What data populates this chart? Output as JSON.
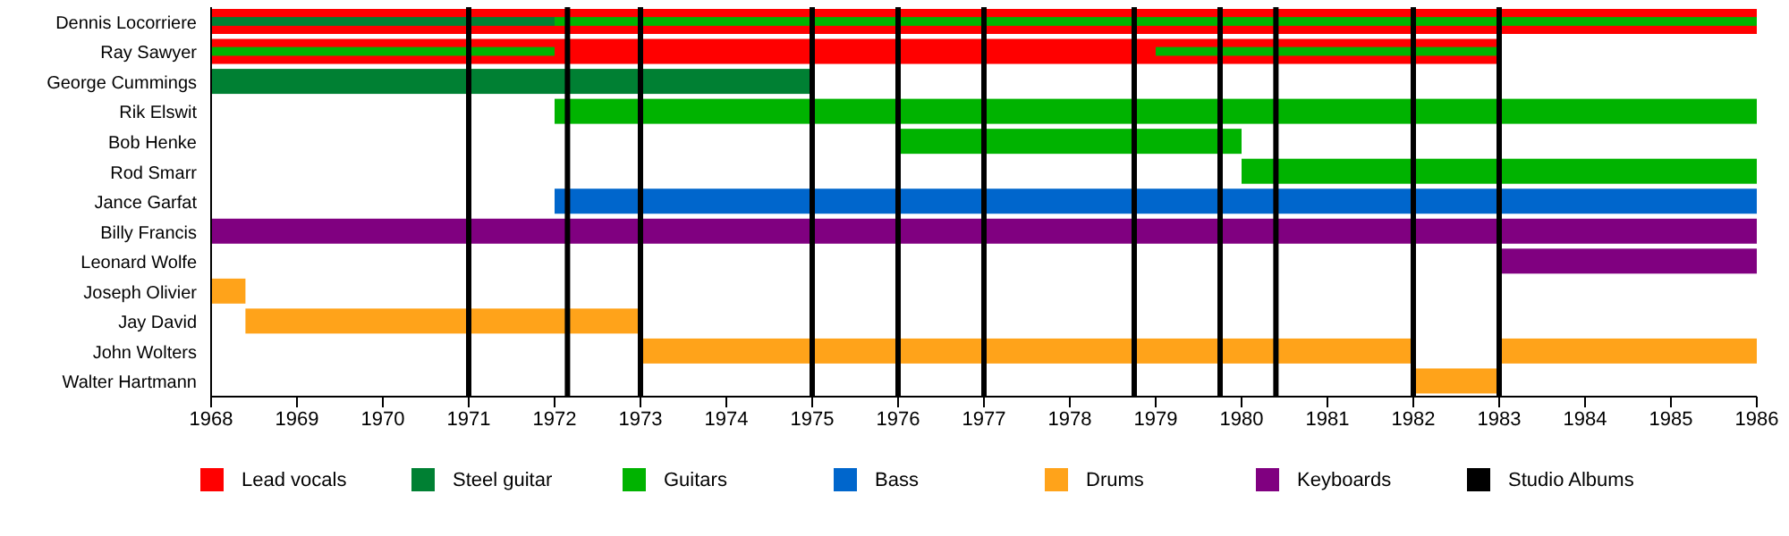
{
  "chart_data": {
    "type": "bar",
    "orientation": "horizontal",
    "categories": [
      "Dennis Locorriere",
      "Ray Sawyer",
      "George Cummings",
      "Rik Elswit",
      "Bob Henke",
      "Rod Smarr",
      "Jance Garfat",
      "Billy Francis",
      "Leonard Wolfe",
      "Joseph Olivier",
      "Jay David",
      "John Wolters",
      "Walter Hartmann"
    ],
    "series": [
      {
        "name": "Lead vocals",
        "color": "#ff0000",
        "base": [
          1968,
          1968,
          null,
          null,
          null,
          null,
          null,
          null,
          null,
          null,
          null,
          null,
          null
        ],
        "values": [
          18,
          15,
          null,
          null,
          null,
          null,
          null,
          null,
          null,
          null,
          null,
          null,
          null
        ]
      },
      {
        "name": "Steel guitar",
        "color": "#008033",
        "base": [
          1968,
          null,
          1968,
          null,
          null,
          null,
          null,
          null,
          null,
          null,
          null,
          null,
          null
        ],
        "values": [
          4,
          null,
          7,
          null,
          null,
          null,
          null,
          null,
          null,
          null,
          null,
          null,
          null
        ]
      },
      {
        "name": "Guitars",
        "color": "#00b300",
        "base": [
          1972,
          1968,
          null,
          1972,
          1976,
          1980,
          null,
          null,
          null,
          null,
          null,
          null,
          null
        ],
        "values": [
          14,
          4,
          null,
          14,
          4,
          6,
          null,
          null,
          null,
          null,
          null,
          null,
          null
        ]
      },
      {
        "color": "#00b300",
        "base": [
          null,
          1979,
          null,
          null,
          null,
          null,
          null,
          null,
          null,
          null,
          null,
          null,
          null
        ],
        "values": [
          null,
          4,
          null,
          null,
          null,
          null,
          null,
          null,
          null,
          null,
          null,
          null,
          null
        ]
      },
      {
        "name": "Bass",
        "color": "#0066cc",
        "base": [
          null,
          null,
          null,
          null,
          null,
          null,
          1972,
          null,
          null,
          null,
          null,
          null,
          null
        ],
        "values": [
          null,
          null,
          null,
          null,
          null,
          null,
          14,
          null,
          null,
          null,
          null,
          null,
          null
        ]
      },
      {
        "name": "Drums",
        "color": "#ffa31a",
        "base": [
          null,
          null,
          null,
          null,
          null,
          null,
          null,
          null,
          null,
          1968,
          1968.4,
          1973,
          1982
        ],
        "values": [
          null,
          null,
          null,
          null,
          null,
          null,
          null,
          null,
          null,
          0.4,
          4.6,
          9,
          1
        ]
      },
      {
        "color": "#ffa31a",
        "base": [
          null,
          null,
          null,
          null,
          null,
          null,
          null,
          null,
          null,
          null,
          null,
          1983,
          null
        ],
        "values": [
          null,
          null,
          null,
          null,
          null,
          null,
          null,
          null,
          null,
          null,
          null,
          3,
          null
        ]
      },
      {
        "name": "Keyboards",
        "color": "#800080",
        "base": [
          null,
          null,
          null,
          null,
          null,
          null,
          null,
          1968,
          1983,
          null,
          null,
          null,
          null
        ],
        "values": [
          null,
          null,
          null,
          null,
          null,
          null,
          null,
          18,
          3,
          null,
          null,
          null,
          null
        ]
      }
    ],
    "xlim": [
      1968,
      1986
    ],
    "xticks": [
      1968,
      1969,
      1970,
      1971,
      1972,
      1973,
      1974,
      1975,
      1976,
      1977,
      1978,
      1979,
      1980,
      1981,
      1982,
      1983,
      1984,
      1985,
      1986
    ],
    "ref_lines": [
      {
        "axis": "x",
        "value": 1971,
        "label": "Studio Albums",
        "color": "#000000"
      },
      {
        "axis": "x",
        "value": 1972.15,
        "color": "#000000"
      },
      {
        "axis": "x",
        "value": 1973,
        "color": "#000000"
      },
      {
        "axis": "x",
        "value": 1975,
        "color": "#000000"
      },
      {
        "axis": "x",
        "value": 1976,
        "color": "#000000"
      },
      {
        "axis": "x",
        "value": 1977,
        "color": "#000000"
      },
      {
        "axis": "x",
        "value": 1978.75,
        "color": "#000000"
      },
      {
        "axis": "x",
        "value": 1979.75,
        "color": "#000000"
      },
      {
        "axis": "x",
        "value": 1980.4,
        "color": "#000000"
      },
      {
        "axis": "x",
        "value": 1982,
        "color": "#000000"
      },
      {
        "axis": "x",
        "value": 1983,
        "color": "#000000"
      }
    ],
    "legend": "bottom"
  }
}
